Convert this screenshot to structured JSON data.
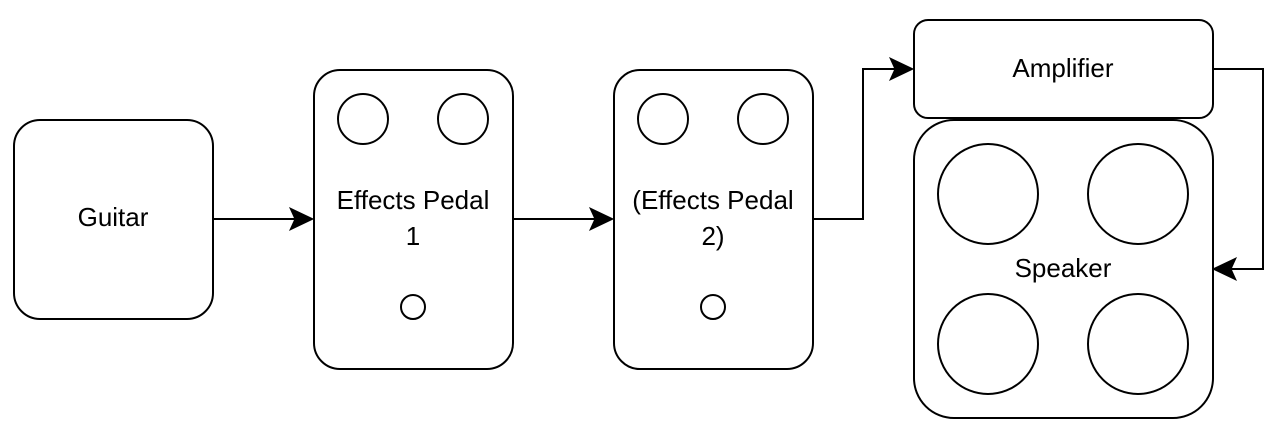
{
  "nodes": {
    "guitar": {
      "label": "Guitar"
    },
    "pedal1": {
      "label_line1": "Effects Pedal",
      "label_line2": "1"
    },
    "pedal2": {
      "label_line1": "(Effects Pedal",
      "label_line2": "2)"
    },
    "amplifier": {
      "label": "Amplifier"
    },
    "speaker": {
      "label": "Speaker"
    }
  },
  "edges": [
    {
      "from": "Guitar",
      "to": "Effects Pedal 1"
    },
    {
      "from": "Effects Pedal 1",
      "to": "(Effects Pedal 2)"
    },
    {
      "from": "(Effects Pedal 2)",
      "to": "Amplifier"
    },
    {
      "from": "Amplifier",
      "to": "Speaker"
    }
  ]
}
